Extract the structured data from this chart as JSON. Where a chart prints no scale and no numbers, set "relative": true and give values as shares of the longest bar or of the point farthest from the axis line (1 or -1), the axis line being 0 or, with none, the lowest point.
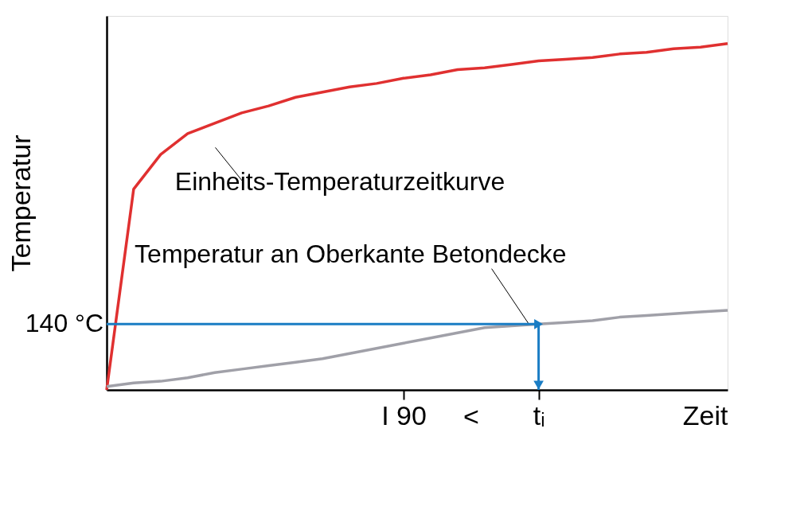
{
  "chart_data": {
    "type": "line",
    "relative": true,
    "ylabel": "Temperatur",
    "xlabel": "Zeit",
    "categories": [
      null,
      null,
      null,
      null,
      null,
      null,
      null,
      null,
      null,
      null,
      null,
      "I 90",
      null,
      null,
      null,
      null,
      "tᵢ",
      null,
      null,
      null,
      null,
      null,
      null,
      null
    ],
    "series": [
      {
        "name": "Einheits-Temperaturzeitkurve",
        "color": "#e03030",
        "values": [
          0,
          0.58,
          0.68,
          0.74,
          0.77,
          0.8,
          0.82,
          0.845,
          0.86,
          0.875,
          0.885,
          0.9,
          0.91,
          0.925,
          0.93,
          0.94,
          0.95,
          0.955,
          0.96,
          0.97,
          0.975,
          0.985,
          0.99,
          1.0
        ]
      },
      {
        "name": "Temperatur an Oberkante Betondecke",
        "color": "#a0a0a8",
        "values": [
          0.01,
          0.02,
          0.025,
          0.035,
          0.05,
          0.06,
          0.07,
          0.08,
          0.09,
          0.105,
          0.12,
          0.135,
          0.15,
          0.165,
          0.18,
          0.185,
          0.19,
          0.195,
          0.2,
          0.21,
          0.215,
          0.22,
          0.225,
          0.23
        ]
      }
    ],
    "ref_lines": [
      {
        "axis": "y",
        "value": 0.19,
        "label": "140 °C",
        "color": "#1a7dc4"
      },
      {
        "axis": "x",
        "value": "tᵢ",
        "label": null,
        "color": "#1a7dc4"
      }
    ],
    "annotations": [
      "<"
    ],
    "grid": false,
    "legend": false,
    "marker": "none",
    "line_style": "solid"
  }
}
